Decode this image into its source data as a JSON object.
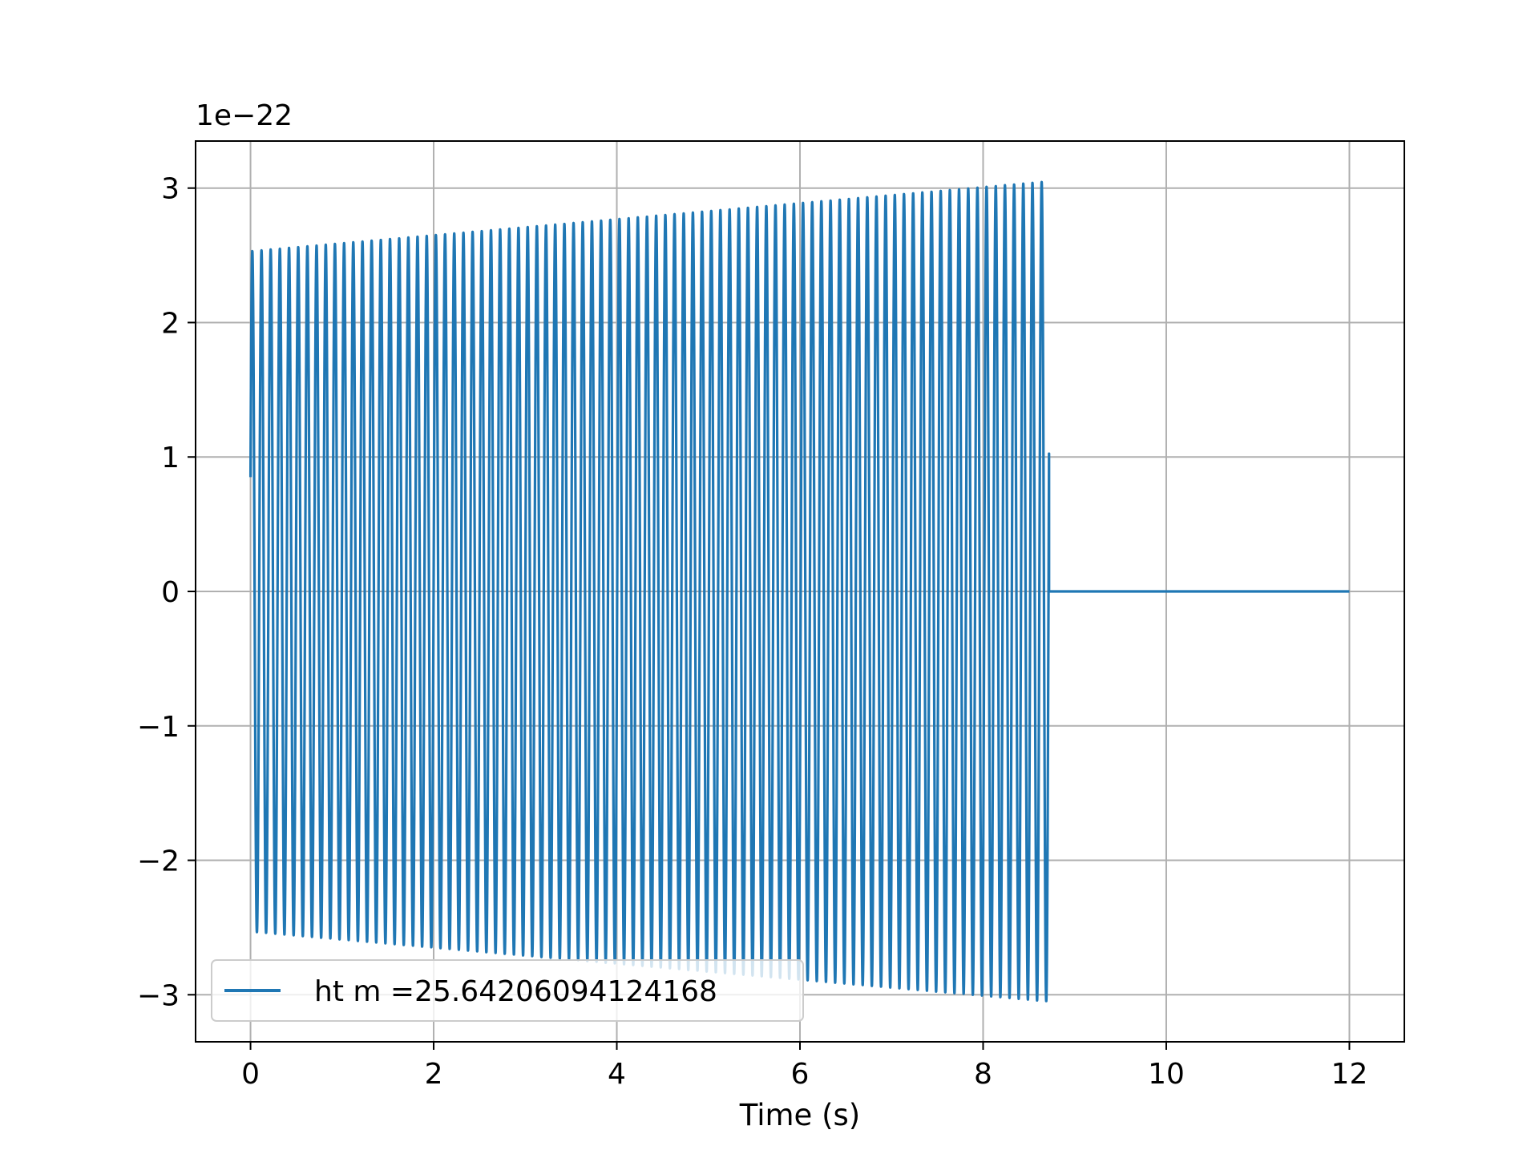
{
  "chart_data": {
    "type": "line",
    "title": "",
    "xlabel": "Time (s)",
    "ylabel": "",
    "y_offset_text": "1e−22",
    "xlim": [
      -0.6,
      12.6
    ],
    "ylim": [
      -3.35,
      3.35
    ],
    "xticks": [
      0,
      2,
      4,
      6,
      8,
      10,
      12
    ],
    "xtick_labels": [
      "0",
      "2",
      "4",
      "6",
      "8",
      "10",
      "12"
    ],
    "yticks": [
      -3,
      -2,
      -1,
      0,
      1,
      2,
      3
    ],
    "ytick_labels": [
      "−3",
      "−2",
      "−1",
      "0",
      "1",
      "2",
      "3"
    ],
    "grid": true,
    "legend_placement": "lower-left",
    "series": [
      {
        "name": "ht m =25.64206094124168",
        "color": "#1f77b4",
        "signal": "oscillating chirp",
        "t_start": 0,
        "t_end_signal": 8.72,
        "t_end": 12,
        "amplitude_start": 2.53,
        "amplitude_end": 3.05,
        "cycles": 87,
        "start_value": 0.85,
        "value_after_end": 0
      }
    ]
  }
}
